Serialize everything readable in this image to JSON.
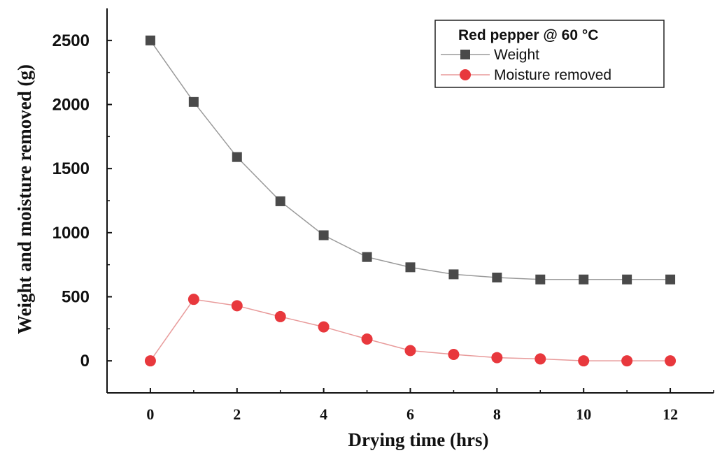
{
  "chart_data": {
    "type": "line",
    "title": "",
    "xlabel": "Drying time (hrs)",
    "ylabel": "Weight and moisture removed (g)",
    "xlim": [
      -1,
      13
    ],
    "ylim": [
      -250,
      2750
    ],
    "xticks": [
      0,
      2,
      4,
      6,
      8,
      10,
      12
    ],
    "yticks": [
      0,
      500,
      1000,
      1500,
      2000,
      2500
    ],
    "grid": false,
    "legend_position": "top-right",
    "legend_title": "Red pepper @ 60 °C",
    "x": [
      0,
      1,
      2,
      3,
      4,
      5,
      6,
      7,
      8,
      9,
      10,
      11,
      12
    ],
    "series": [
      {
        "name": "Weight",
        "marker": "square",
        "color": "#4a4a4a",
        "line_color": "#9a9a9a",
        "values": [
          2500,
          2020,
          1590,
          1245,
          980,
          810,
          730,
          675,
          650,
          635,
          635,
          635,
          635
        ]
      },
      {
        "name": "Moisture removed",
        "marker": "circle",
        "color": "#e8383d",
        "line_color": "#e89a9a",
        "values": [
          0,
          480,
          430,
          345,
          265,
          170,
          80,
          50,
          25,
          15,
          0,
          0,
          0
        ]
      }
    ]
  }
}
